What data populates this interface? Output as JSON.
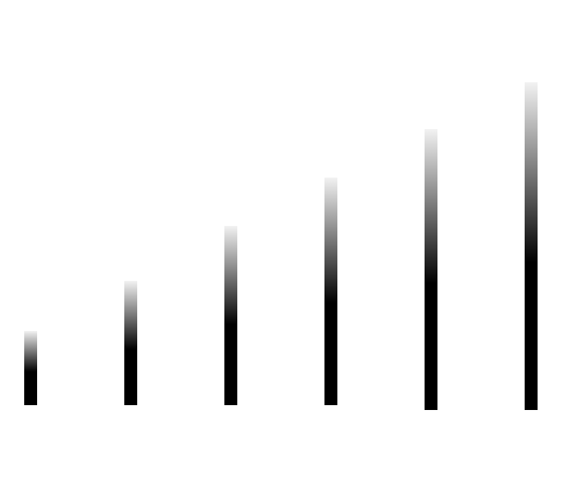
{
  "bars": [
    {
      "level": 0.17,
      "fade_start": 0.45
    },
    {
      "level": 0.3,
      "fade_start": 0.45
    },
    {
      "level": 0.43,
      "fade_start": 0.45
    },
    {
      "level": 0.56,
      "fade_start": 0.45
    },
    {
      "level": 0.7,
      "fade_start": 0.45
    },
    {
      "level": 0.82,
      "fade_start": 0.45
    }
  ],
  "colors": {
    "background": "#ffffff",
    "bar_solid": "#000000",
    "bar_top": "#f2f2f2"
  }
}
